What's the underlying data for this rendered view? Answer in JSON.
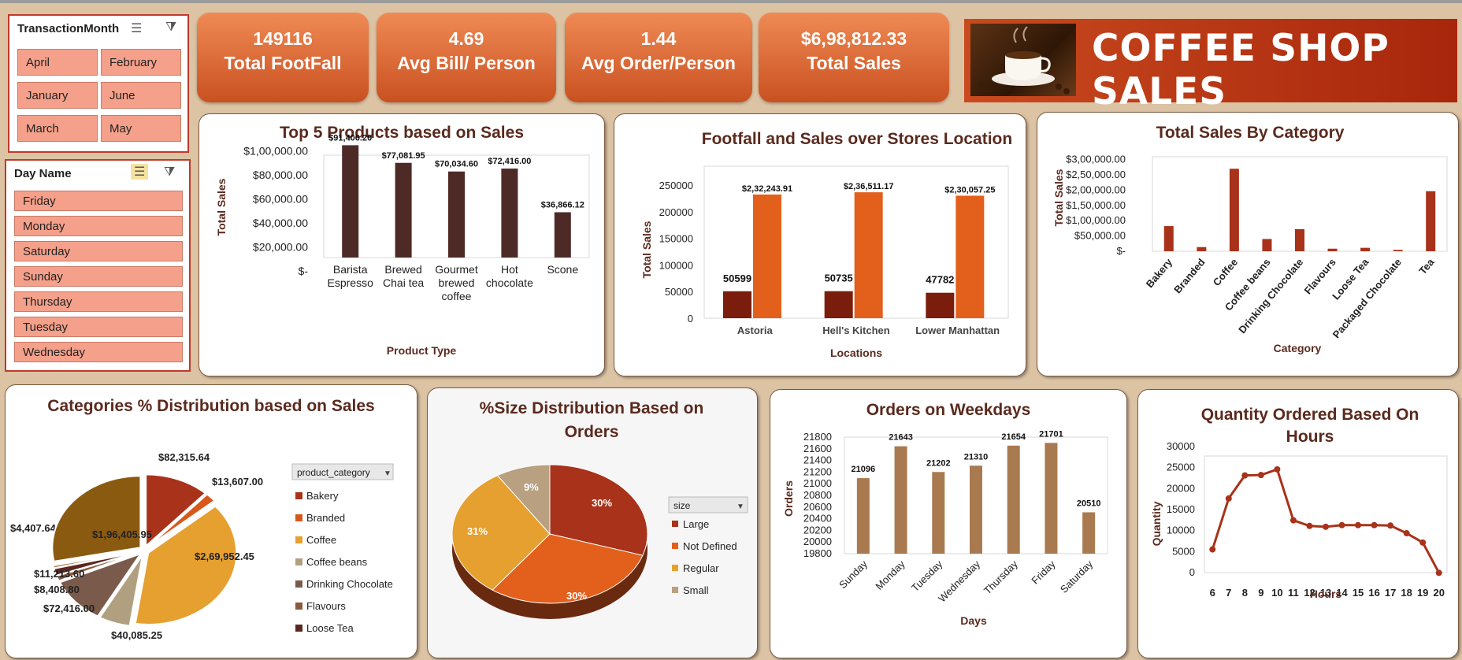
{
  "slicer_month": {
    "title": "TransactionMonth",
    "items": [
      "April",
      "February",
      "January",
      "June",
      "March",
      "May"
    ]
  },
  "slicer_day": {
    "title": "Day Name",
    "items": [
      "Friday",
      "Monday",
      "Saturday",
      "Sunday",
      "Thursday",
      "Tuesday",
      "Wednesday"
    ]
  },
  "kpis": [
    {
      "value": "149116",
      "label": "Total FootFall"
    },
    {
      "value": "4.69",
      "label": "Avg Bill/ Person"
    },
    {
      "value": "1.44",
      "label": "Avg Order/Person"
    },
    {
      "value": "$6,98,812.33",
      "label": "Total Sales"
    }
  ],
  "banner": {
    "title": "COFFEE SHOP SALES",
    "icon": "coffee-cup-photo"
  },
  "colors": {
    "dark_brown": "#4e2a26",
    "orange": "#e2601c",
    "dark_red": "#7a1d0c",
    "rust": "#a8321a",
    "tan": "#a97a50"
  },
  "chart_data": [
    {
      "type": "bar",
      "title": "Top 5 Products based on Sales",
      "xlabel": "Product Type",
      "ylabel": "Total Sales",
      "categories": [
        [
          "Barista",
          "Espresso"
        ],
        [
          "Brewed",
          "Chai tea"
        ],
        [
          "Gourmet",
          "brewed",
          "coffee"
        ],
        [
          "Hot",
          "chocolate"
        ],
        [
          "Scone"
        ]
      ],
      "values": [
        91406.2,
        77081.95,
        70034.6,
        72416.0,
        36866.12
      ],
      "data_labels": [
        "$91,406.20",
        "$77,081.95",
        "$70,034.60",
        "$72,416.00",
        "$36,866.12"
      ],
      "yticks": [
        "$-",
        "$20,000.00",
        "$40,000.00",
        "$60,000.00",
        "$80,000.00",
        "$1,00,000.00"
      ],
      "ylim": [
        0,
        100000
      ]
    },
    {
      "type": "bar",
      "title": "Footfall and Sales over Stores Location",
      "xlabel": "Locations",
      "ylabel": "Total Sales",
      "categories": [
        "Astoria",
        "Hell's Kitchen",
        "Lower Manhattan"
      ],
      "series": [
        {
          "values": [
            50599,
            50735,
            47782
          ],
          "labels": [
            "50599",
            "50735",
            "47782"
          ]
        },
        {
          "values": [
            232243.91,
            236511.17,
            230057.25
          ],
          "labels": [
            "$2,32,243.91",
            "$2,36,511.17",
            "$2,30,057.25"
          ]
        }
      ],
      "yticks": [
        "0",
        "50000",
        "100000",
        "150000",
        "200000",
        "250000"
      ],
      "ylim": [
        0,
        250000
      ]
    },
    {
      "type": "bar",
      "title": "Total Sales By Category",
      "xlabel": "Category",
      "ylabel": "Total Sales",
      "categories": [
        "Bakery",
        "Branded",
        "Coffee",
        "Coffee beans",
        "Drinking Chocolate",
        "Flavours",
        "Loose Tea",
        "Packaged Chocolate",
        "Tea"
      ],
      "values": [
        82315.64,
        13607.0,
        269952.45,
        40085.25,
        72416.0,
        8408.8,
        11213.6,
        4407.64,
        196405.95
      ],
      "yticks": [
        "$-",
        "$50,000.00",
        "$1,00,000.00",
        "$1,50,000.00",
        "$2,00,000.00",
        "$2,50,000.00",
        "$3,00,000.00"
      ],
      "ylim": [
        0,
        300000
      ]
    },
    {
      "type": "pie",
      "title": "Categories % Distribution based on Sales",
      "legend_title": "product_category",
      "legend": [
        "Bakery",
        "Branded",
        "Coffee",
        "Coffee beans",
        "Drinking Chocolate",
        "Flavours",
        "Loose Tea"
      ],
      "values": [
        82315.64,
        13607.0,
        269952.45,
        40085.25,
        72416.0,
        8408.8,
        11213.6,
        4407.64,
        196405.95
      ],
      "data_labels": [
        "$82,315.64",
        "$13,607.00",
        "$2,69,952.45",
        "$40,085.25",
        "$72,416.00",
        "$8,408.80",
        "$11,213.60",
        "$4,407.64",
        "$1,96,405.95"
      ]
    },
    {
      "type": "pie",
      "title": "%Size Distribution Based on Orders",
      "legend_title": "size",
      "legend": [
        "Large",
        "Not Defined",
        "Regular",
        "Small"
      ],
      "values": [
        30,
        30,
        31,
        9
      ],
      "data_labels": [
        "30%",
        "30%",
        "31%",
        "9%"
      ]
    },
    {
      "type": "bar",
      "title": "Orders on Weekdays",
      "xlabel": "Days",
      "ylabel": "Orders",
      "categories": [
        "Sunday",
        "Monday",
        "Tuesday",
        "Wednesday",
        "Thursday",
        "Friday",
        "Saturday"
      ],
      "values": [
        21096,
        21643,
        21202,
        21310,
        21654,
        21701,
        20510
      ],
      "yticks": [
        "19800",
        "20000",
        "20200",
        "20400",
        "20600",
        "20800",
        "21000",
        "21200",
        "21400",
        "21600",
        "21800"
      ],
      "ylim": [
        19800,
        21800
      ]
    },
    {
      "type": "line",
      "title": "Quantity Ordered Based On Hours",
      "xlabel": "Hours",
      "ylabel": "Quantity",
      "x": [
        6,
        7,
        8,
        9,
        10,
        11,
        12,
        13,
        14,
        15,
        16,
        17,
        18,
        19,
        20
      ],
      "values": [
        6900,
        19500,
        25200,
        25300,
        26700,
        14100,
        12700,
        12500,
        12900,
        12900,
        12900,
        12800,
        10900,
        8600,
        1100
      ],
      "yticks": [
        "0",
        "5000",
        "10000",
        "15000",
        "20000",
        "25000",
        "30000"
      ],
      "ylim": [
        0,
        30000
      ]
    }
  ]
}
